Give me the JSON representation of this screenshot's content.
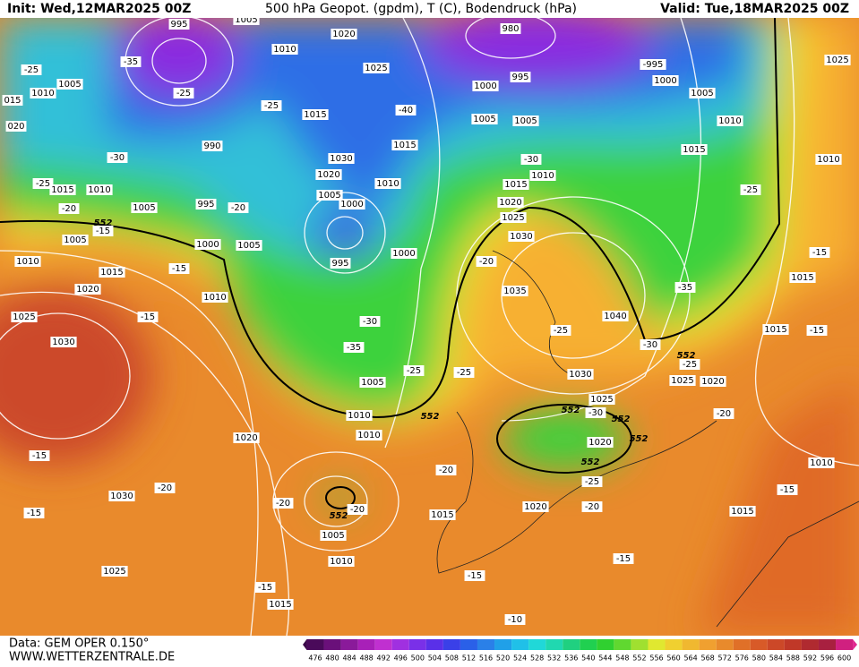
{
  "header": {
    "init": "Init: Wed,12MAR2025 00Z",
    "title": "500 hPa Geopot. (gpdm), T (C), Bodendruck (hPa)",
    "valid": "Valid: Tue,18MAR2025 00Z"
  },
  "footer": {
    "data": "Data: GEM OPER 0.150°",
    "site": "WWW.WETTERZENTRALE.DE"
  },
  "legend": {
    "labels": [
      "476",
      "480",
      "484",
      "488",
      "492",
      "496",
      "500",
      "504",
      "508",
      "512",
      "516",
      "520",
      "524",
      "528",
      "532",
      "536",
      "540",
      "544",
      "548",
      "552",
      "556",
      "560",
      "564",
      "568",
      "572",
      "576",
      "580",
      "584",
      "588",
      "592",
      "596",
      "600"
    ]
  },
  "map_labels": [
    "1005",
    "995",
    "1010",
    "1020",
    "-35",
    "-25",
    "1005",
    "1010",
    "1025",
    "-25",
    "-25",
    "1015",
    "-40",
    "980",
    "995",
    "1000",
    "-995",
    "1000",
    "1005",
    "1005",
    "1005",
    "1010",
    "1025",
    "020",
    "015",
    "990",
    "1030",
    "1015",
    "-30",
    "1015",
    "1010",
    "1020",
    "1010",
    "1010",
    "1015",
    "-30",
    "-25",
    "1015",
    "1010",
    "1005",
    "995",
    "-20",
    "1005",
    "1000",
    "1020",
    "1025",
    "-20",
    "-25",
    "552",
    "-15",
    "1005",
    "1000",
    "1005",
    "1030",
    "995",
    "1000",
    "1010",
    "-15",
    "1015",
    "-15",
    "-20",
    "1020",
    "1010",
    "1035",
    "-35",
    "1015",
    "1025",
    "-15",
    "1040",
    "-30",
    "1015",
    "-15",
    "-25",
    "1030",
    "-35",
    "-30",
    "552",
    "-25",
    "-25",
    "-25",
    "1030",
    "1025",
    "1020",
    "1005",
    "1025",
    "552",
    "-30",
    "552",
    "-20",
    "1010",
    "552",
    "1010",
    "1020",
    "1020",
    "552",
    "-15",
    "552",
    "1010",
    "-20",
    "-25",
    "-20",
    "1030",
    "-15",
    "-20",
    "-20",
    "552",
    "-15",
    "1015",
    "1020",
    "-20",
    "1015",
    "1005",
    "1010",
    "-15",
    "1025",
    "-15",
    "-15",
    "1015",
    "-10"
  ]
}
